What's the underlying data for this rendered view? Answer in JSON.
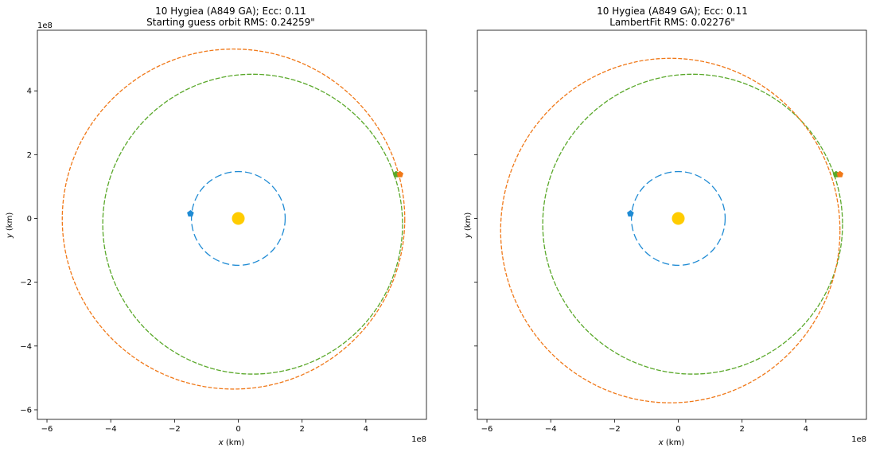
{
  "chart_data": [
    {
      "type": "line",
      "title_line1": "10 Hygiea (A849 GA); Ecc: 0.11",
      "title_line2": "Starting guess orbit RMS: 0.24259\"",
      "xlabel_var": "x",
      "xlabel_unit": " (km)",
      "ylabel_var": "y",
      "ylabel_unit": " (km)",
      "x_offset_text": "1e8",
      "y_offset_text": "1e8",
      "xlim": [
        -6.3,
        5.9
      ],
      "ylim": [
        -6.3,
        5.9
      ],
      "xticks": [
        -6,
        -4,
        -2,
        0,
        2,
        4
      ],
      "yticks": [
        -6,
        -4,
        -2,
        0,
        2,
        4
      ],
      "show_ytick_labels": true,
      "grid": false,
      "series": [
        {
          "color": "#1f8bd4",
          "dash": "9,4",
          "center": [
            0,
            0
          ],
          "rx": 1.47,
          "ry": 1.47
        },
        {
          "color": "#5aa82a",
          "dash": "6,2",
          "center": [
            0.45,
            -0.18
          ],
          "rx": 4.7,
          "ry": 4.7
        },
        {
          "color": "#f07818",
          "dash": "5,2",
          "center": [
            -0.15,
            -0.02
          ],
          "rx": 5.37,
          "ry": 5.33
        }
      ],
      "markers": [
        {
          "x": -1.5,
          "y": 0.15,
          "color": "#1f8bd4"
        },
        {
          "x": 4.95,
          "y": 1.38,
          "color": "#5aa82a"
        },
        {
          "x": 5.07,
          "y": 1.38,
          "color": "#f07818"
        }
      ],
      "sun": {
        "x": 0,
        "y": 0,
        "color": "#ffcc00"
      }
    },
    {
      "type": "line",
      "title_line1": "10 Hygiea (A849 GA); Ecc: 0.11",
      "title_line2": "LambertFit RMS: 0.02276\"",
      "xlabel_var": "x",
      "xlabel_unit": " (km)",
      "ylabel_var": "y",
      "ylabel_unit": " (km)",
      "x_offset_text": "1e8",
      "y_offset_text": "",
      "xlim": [
        -6.3,
        5.9
      ],
      "ylim": [
        -6.3,
        5.9
      ],
      "xticks": [
        -6,
        -4,
        -2,
        0,
        2,
        4
      ],
      "yticks": [
        -6,
        -4,
        -2,
        0,
        2,
        4
      ],
      "show_ytick_labels": false,
      "grid": false,
      "series": [
        {
          "color": "#1f8bd4",
          "dash": "9,4",
          "center": [
            0,
            0
          ],
          "rx": 1.47,
          "ry": 1.47
        },
        {
          "color": "#5aa82a",
          "dash": "6,2",
          "center": [
            0.45,
            -0.18
          ],
          "rx": 4.7,
          "ry": 4.7
        },
        {
          "color": "#f07818",
          "dash": "5,2",
          "center": [
            -0.25,
            -0.38
          ],
          "rx": 5.32,
          "ry": 5.4
        }
      ],
      "markers": [
        {
          "x": -1.5,
          "y": 0.15,
          "color": "#1f8bd4"
        },
        {
          "x": 4.95,
          "y": 1.38,
          "color": "#5aa82a"
        },
        {
          "x": 5.07,
          "y": 1.38,
          "color": "#f07818"
        }
      ],
      "sun": {
        "x": 0,
        "y": 0,
        "color": "#ffcc00"
      }
    }
  ]
}
